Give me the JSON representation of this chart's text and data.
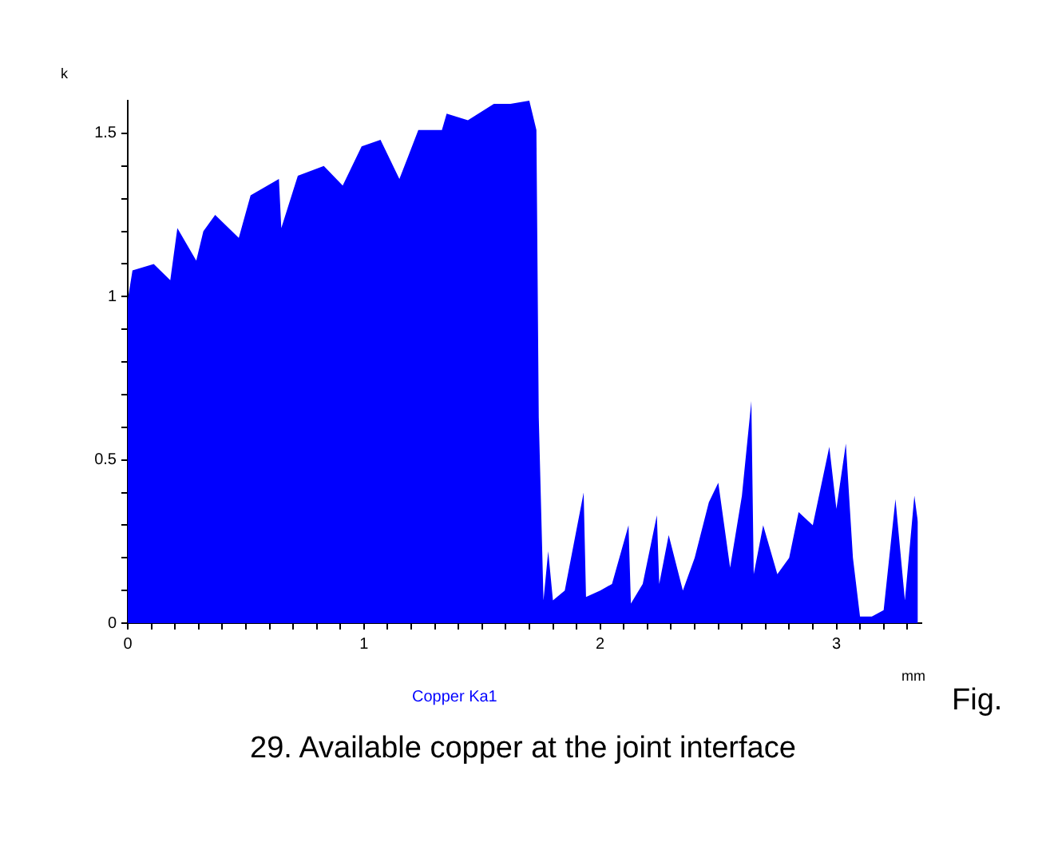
{
  "chart_data": {
    "type": "area",
    "xlabel": "mm",
    "ylabel": "k",
    "grid": false,
    "legend": "bottom",
    "marker": "none",
    "xlim": [
      0,
      3.36
    ],
    "ylim": [
      0,
      1.6
    ],
    "xticks": [
      0,
      {
        "value": 0.1,
        "label": null
      },
      {
        "value": 0.2,
        "label": null
      },
      {
        "value": 0.3,
        "label": null
      },
      {
        "value": 0.4,
        "label": null
      },
      {
        "value": 0.5,
        "label": null
      },
      {
        "value": 0.6,
        "label": null
      },
      {
        "value": 0.7,
        "label": null
      },
      {
        "value": 0.8,
        "label": null
      },
      {
        "value": 0.9,
        "label": null
      },
      1,
      {
        "value": 1.1,
        "label": null
      },
      {
        "value": 1.2,
        "label": null
      },
      {
        "value": 1.3,
        "label": null
      },
      {
        "value": 1.4,
        "label": null
      },
      {
        "value": 1.5,
        "label": null
      },
      {
        "value": 1.6,
        "label": null
      },
      {
        "value": 1.7,
        "label": null
      },
      {
        "value": 1.8,
        "label": null
      },
      {
        "value": 1.9,
        "label": null
      },
      2,
      {
        "value": 2.1,
        "label": null
      },
      {
        "value": 2.2,
        "label": null
      },
      {
        "value": 2.3,
        "label": null
      },
      {
        "value": 2.4,
        "label": null
      },
      {
        "value": 2.5,
        "label": null
      },
      {
        "value": 2.6,
        "label": null
      },
      {
        "value": 2.7,
        "label": null
      },
      {
        "value": 2.8,
        "label": null
      },
      {
        "value": 2.9,
        "label": null
      },
      3,
      {
        "value": 3.1,
        "label": null
      },
      {
        "value": 3.2,
        "label": null
      },
      {
        "value": 3.3,
        "label": null
      }
    ],
    "yticks": [
      0,
      {
        "value": 0.1,
        "label": null
      },
      {
        "value": 0.2,
        "label": null
      },
      {
        "value": 0.3,
        "label": null
      },
      {
        "value": 0.4,
        "label": null
      },
      0.5,
      {
        "value": 0.6,
        "label": null
      },
      {
        "value": 0.7,
        "label": null
      },
      {
        "value": 0.8,
        "label": null
      },
      {
        "value": 0.9,
        "label": null
      },
      1,
      {
        "value": 1.1,
        "label": null
      },
      {
        "value": 1.2,
        "label": null
      },
      {
        "value": 1.3,
        "label": null
      },
      {
        "value": 1.4,
        "label": null
      },
      1.5
    ],
    "series": [
      {
        "name": "Copper Ka1",
        "color": "#0000ff",
        "x": [
          0,
          0.02,
          0.11,
          0.18,
          0.21,
          0.29,
          0.32,
          0.37,
          0.47,
          0.52,
          0.64,
          0.65,
          0.72,
          0.83,
          0.91,
          0.99,
          1.07,
          1.15,
          1.23,
          1.33,
          1.35,
          1.44,
          1.55,
          1.62,
          1.7,
          1.73,
          1.74,
          1.76,
          1.78,
          1.8,
          1.85,
          1.93,
          1.94,
          2.0,
          2.05,
          2.12,
          2.13,
          2.18,
          2.24,
          2.25,
          2.29,
          2.35,
          2.4,
          2.46,
          2.5,
          2.55,
          2.6,
          2.64,
          2.65,
          2.69,
          2.75,
          2.8,
          2.84,
          2.9,
          2.97,
          3.0,
          3.04,
          3.07,
          3.1,
          3.15,
          3.2,
          3.25,
          3.29,
          3.33,
          3.345
        ],
        "values": [
          0.99,
          1.08,
          1.1,
          1.05,
          1.21,
          1.11,
          1.2,
          1.25,
          1.18,
          1.31,
          1.36,
          1.21,
          1.37,
          1.4,
          1.34,
          1.46,
          1.48,
          1.36,
          1.51,
          1.51,
          1.56,
          1.54,
          1.59,
          1.59,
          1.6,
          1.51,
          0.63,
          0.07,
          0.22,
          0.07,
          0.1,
          0.4,
          0.08,
          0.1,
          0.12,
          0.3,
          0.06,
          0.12,
          0.33,
          0.12,
          0.27,
          0.1,
          0.2,
          0.37,
          0.43,
          0.17,
          0.39,
          0.68,
          0.15,
          0.3,
          0.15,
          0.2,
          0.34,
          0.3,
          0.54,
          0.35,
          0.55,
          0.2,
          0.02,
          0.02,
          0.04,
          0.38,
          0.07,
          0.39,
          0.31
        ]
      }
    ],
    "annotations": [
      "Fig.",
      "29. Available copper at the joint interface"
    ]
  }
}
